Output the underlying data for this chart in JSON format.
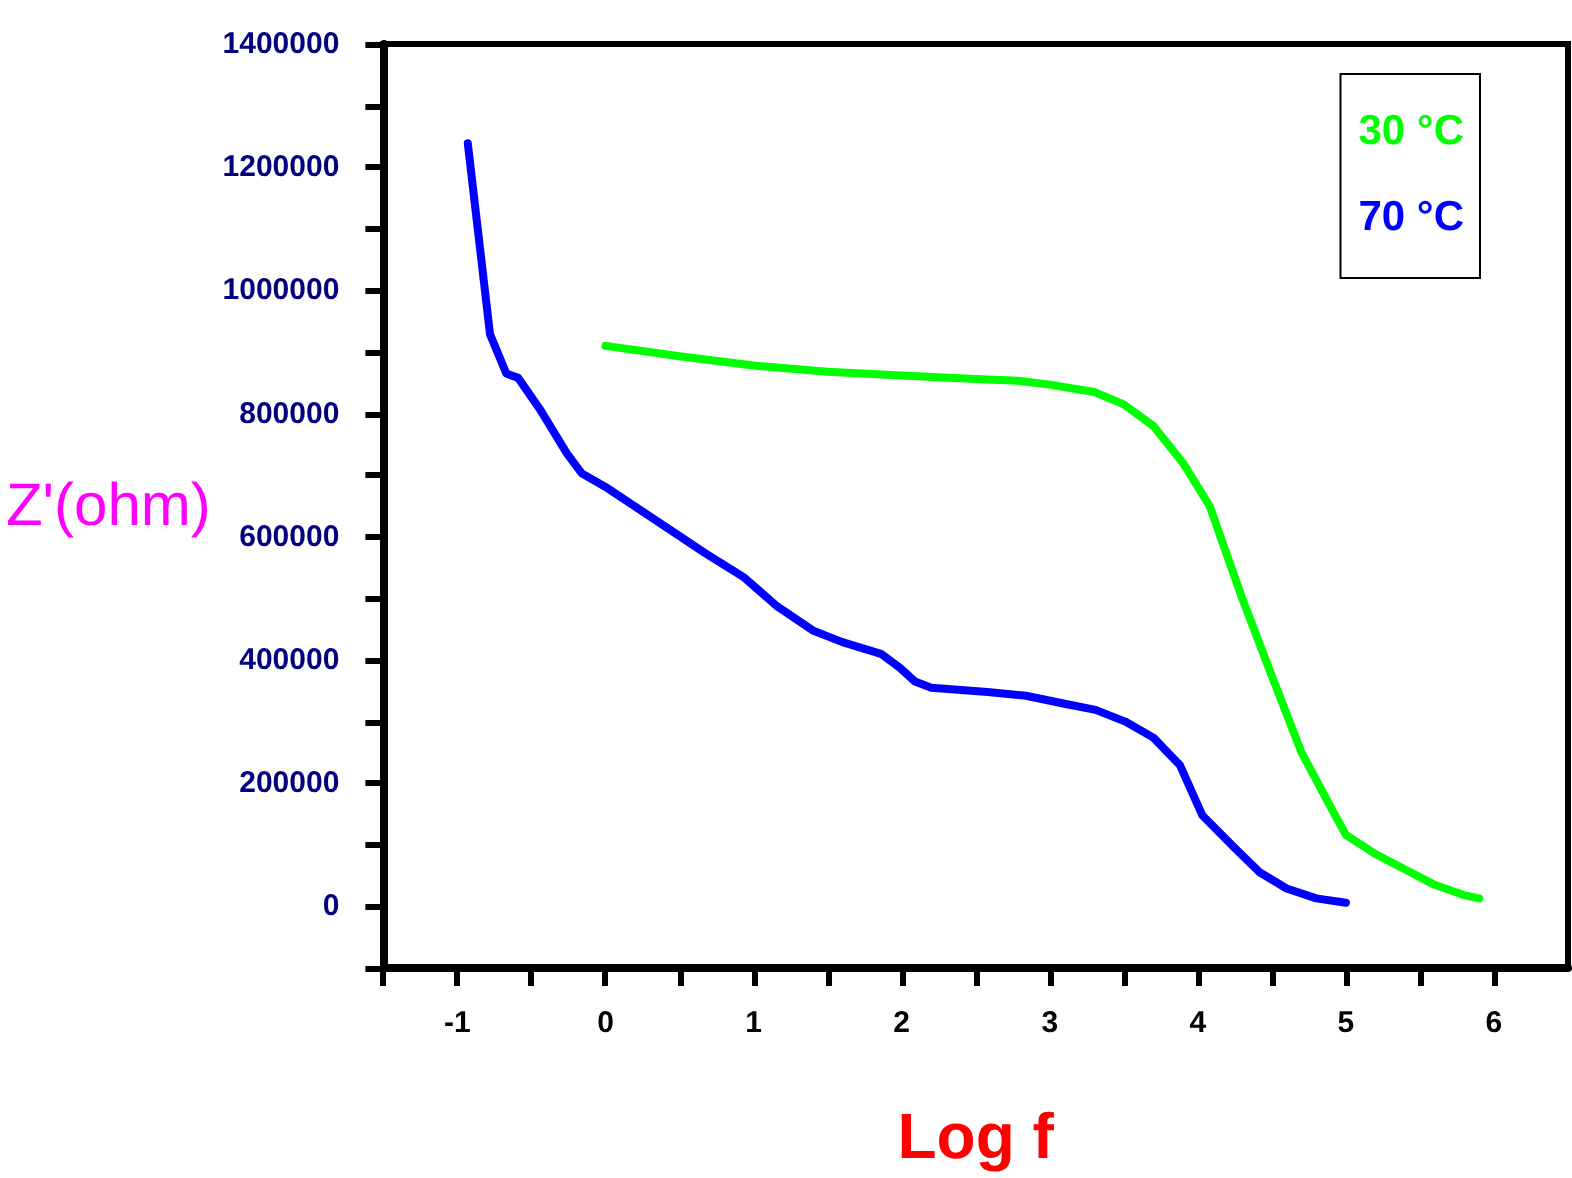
{
  "chart_data": {
    "type": "line",
    "xlabel": "Log f",
    "ylabel": "Z'(ohm)",
    "xlim": [
      -1.5,
      6.5
    ],
    "xticks": [
      {
        "value": -1.5,
        "label": null
      },
      -1,
      {
        "value": -0.5,
        "label": null
      },
      0,
      {
        "value": 0.5,
        "label": null
      },
      1,
      {
        "value": 1.5,
        "label": null
      },
      2,
      {
        "value": 2.5,
        "label": null
      },
      3,
      {
        "value": 3.5,
        "label": null
      },
      4,
      {
        "value": 4.5,
        "label": null
      },
      5,
      {
        "value": 5.5,
        "label": null
      },
      6
    ],
    "ylim": [
      -100000,
      1400000
    ],
    "yticks": [
      {
        "value": -100000,
        "label": null
      },
      0,
      {
        "value": 100000,
        "label": null
      },
      200000,
      {
        "value": 300000,
        "label": null
      },
      400000,
      {
        "value": 500000,
        "label": null
      },
      600000,
      {
        "value": 700000,
        "label": null
      },
      800000,
      {
        "value": 900000,
        "label": null
      },
      1000000,
      {
        "value": 1100000,
        "label": null
      },
      1200000,
      {
        "value": 1300000,
        "label": null
      },
      1400000
    ],
    "grid": false,
    "legend": "top right",
    "marker": "none",
    "line_style": "solid",
    "series": [
      {
        "name": "30 °C",
        "color": "#00ff00",
        "x": [
          0,
          0.5,
          1,
          1.5,
          2,
          2.5,
          2.8,
          3,
          3.3,
          3.5,
          3.7,
          3.9,
          4.08,
          4.3,
          4.5,
          4.7,
          4.9,
          5,
          5.2,
          5.4,
          5.6,
          5.8,
          5.9
        ],
        "values": [
          910000,
          893000,
          878000,
          868000,
          862000,
          856000,
          853000,
          847000,
          835000,
          815000,
          780000,
          720000,
          650000,
          500000,
          374000,
          250000,
          160000,
          116000,
          85000,
          60000,
          35000,
          18000,
          13000
        ]
      },
      {
        "name": "70 °C",
        "color": "#0000ff",
        "x": [
          -0.93,
          -0.78,
          -0.67,
          -0.59,
          -0.44,
          -0.26,
          -0.16,
          0,
          0.47,
          0.67,
          0.93,
          1.16,
          1.4,
          1.6,
          1.86,
          1.99,
          2.09,
          2.2,
          2.58,
          2.84,
          3.1,
          3.31,
          3.51,
          3.7,
          3.88,
          4.03,
          4.24,
          4.42,
          4.6,
          4.8,
          5
        ],
        "values": [
          1239000,
          929000,
          865000,
          858000,
          806000,
          735000,
          703000,
          681000,
          606000,
          574000,
          535000,
          487000,
          448000,
          429000,
          410000,
          387000,
          365000,
          355000,
          348000,
          342000,
          329000,
          319000,
          300000,
          274000,
          229000,
          148000,
          97000,
          55000,
          29000,
          13000,
          6000
        ]
      }
    ]
  }
}
